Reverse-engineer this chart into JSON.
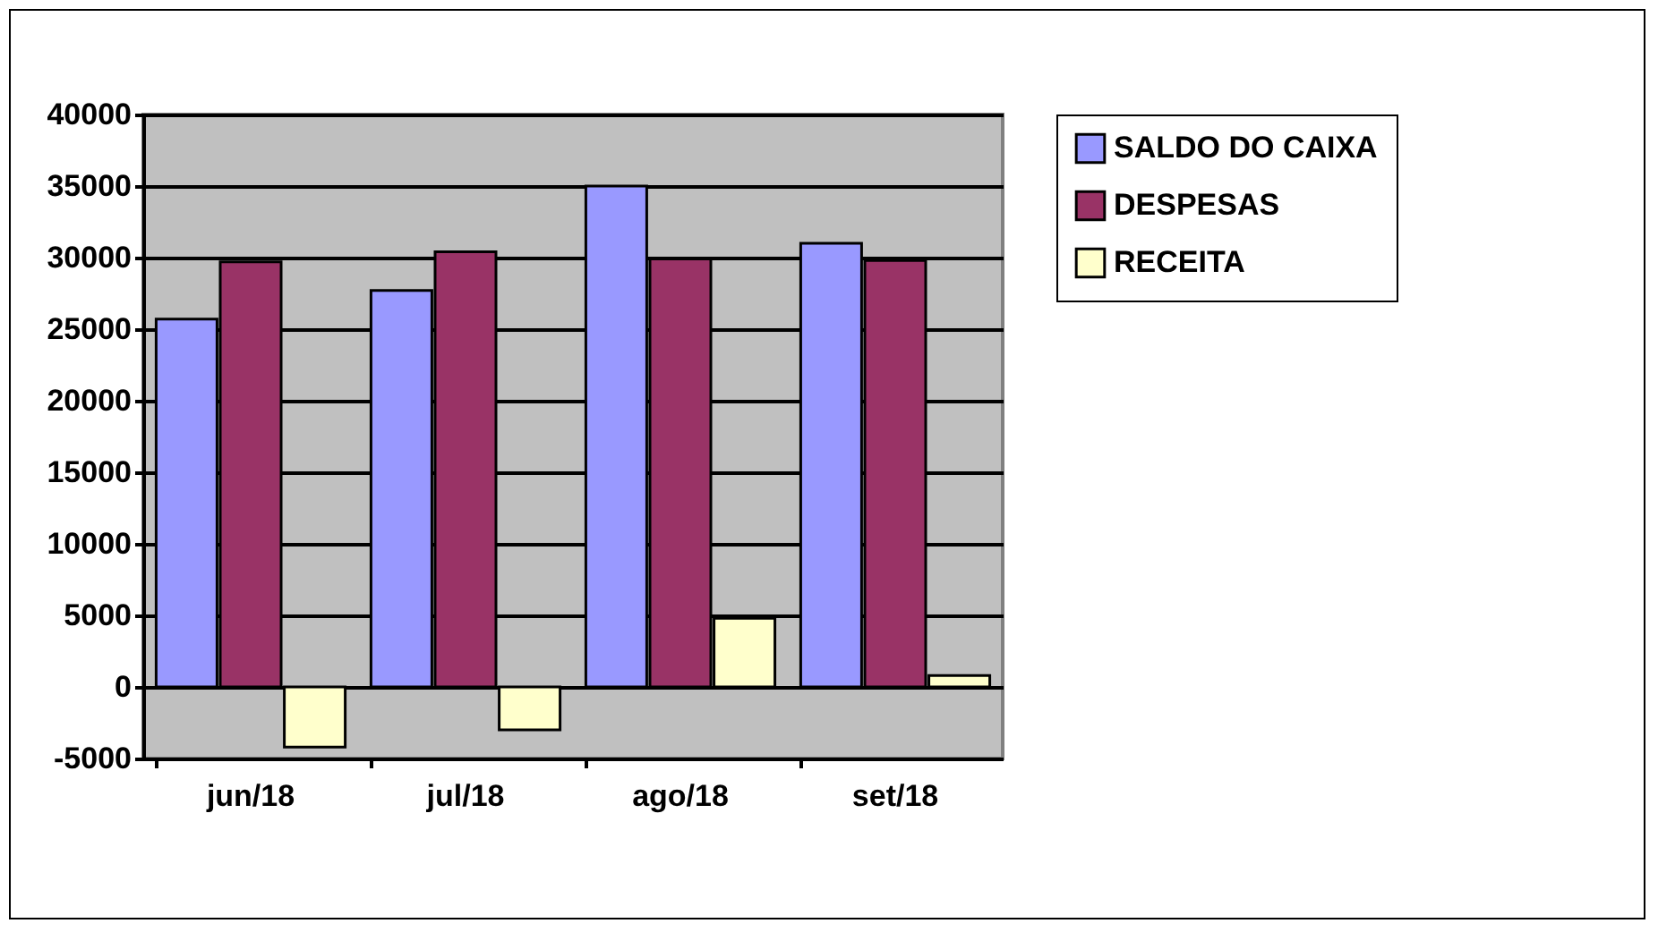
{
  "chart_data": {
    "type": "bar",
    "categories": [
      "jun/18",
      "jul/18",
      "ago/18",
      "set/18"
    ],
    "series": [
      {
        "name": "SALDO DO CAIXA",
        "color": "#9999ff",
        "values": [
          25700,
          27700,
          35000,
          31000
        ]
      },
      {
        "name": "DESPESAS",
        "color": "#993366",
        "values": [
          29700,
          30400,
          29900,
          29800
        ]
      },
      {
        "name": "RECEITA",
        "color": "#ffffcc",
        "values": [
          -4200,
          -3000,
          4800,
          800
        ]
      }
    ],
    "ylim": [
      -5000,
      40000
    ],
    "yticks": [
      -5000,
      0,
      5000,
      10000,
      15000,
      20000,
      25000,
      30000,
      35000,
      40000
    ],
    "grid": "y",
    "legend": "right"
  }
}
